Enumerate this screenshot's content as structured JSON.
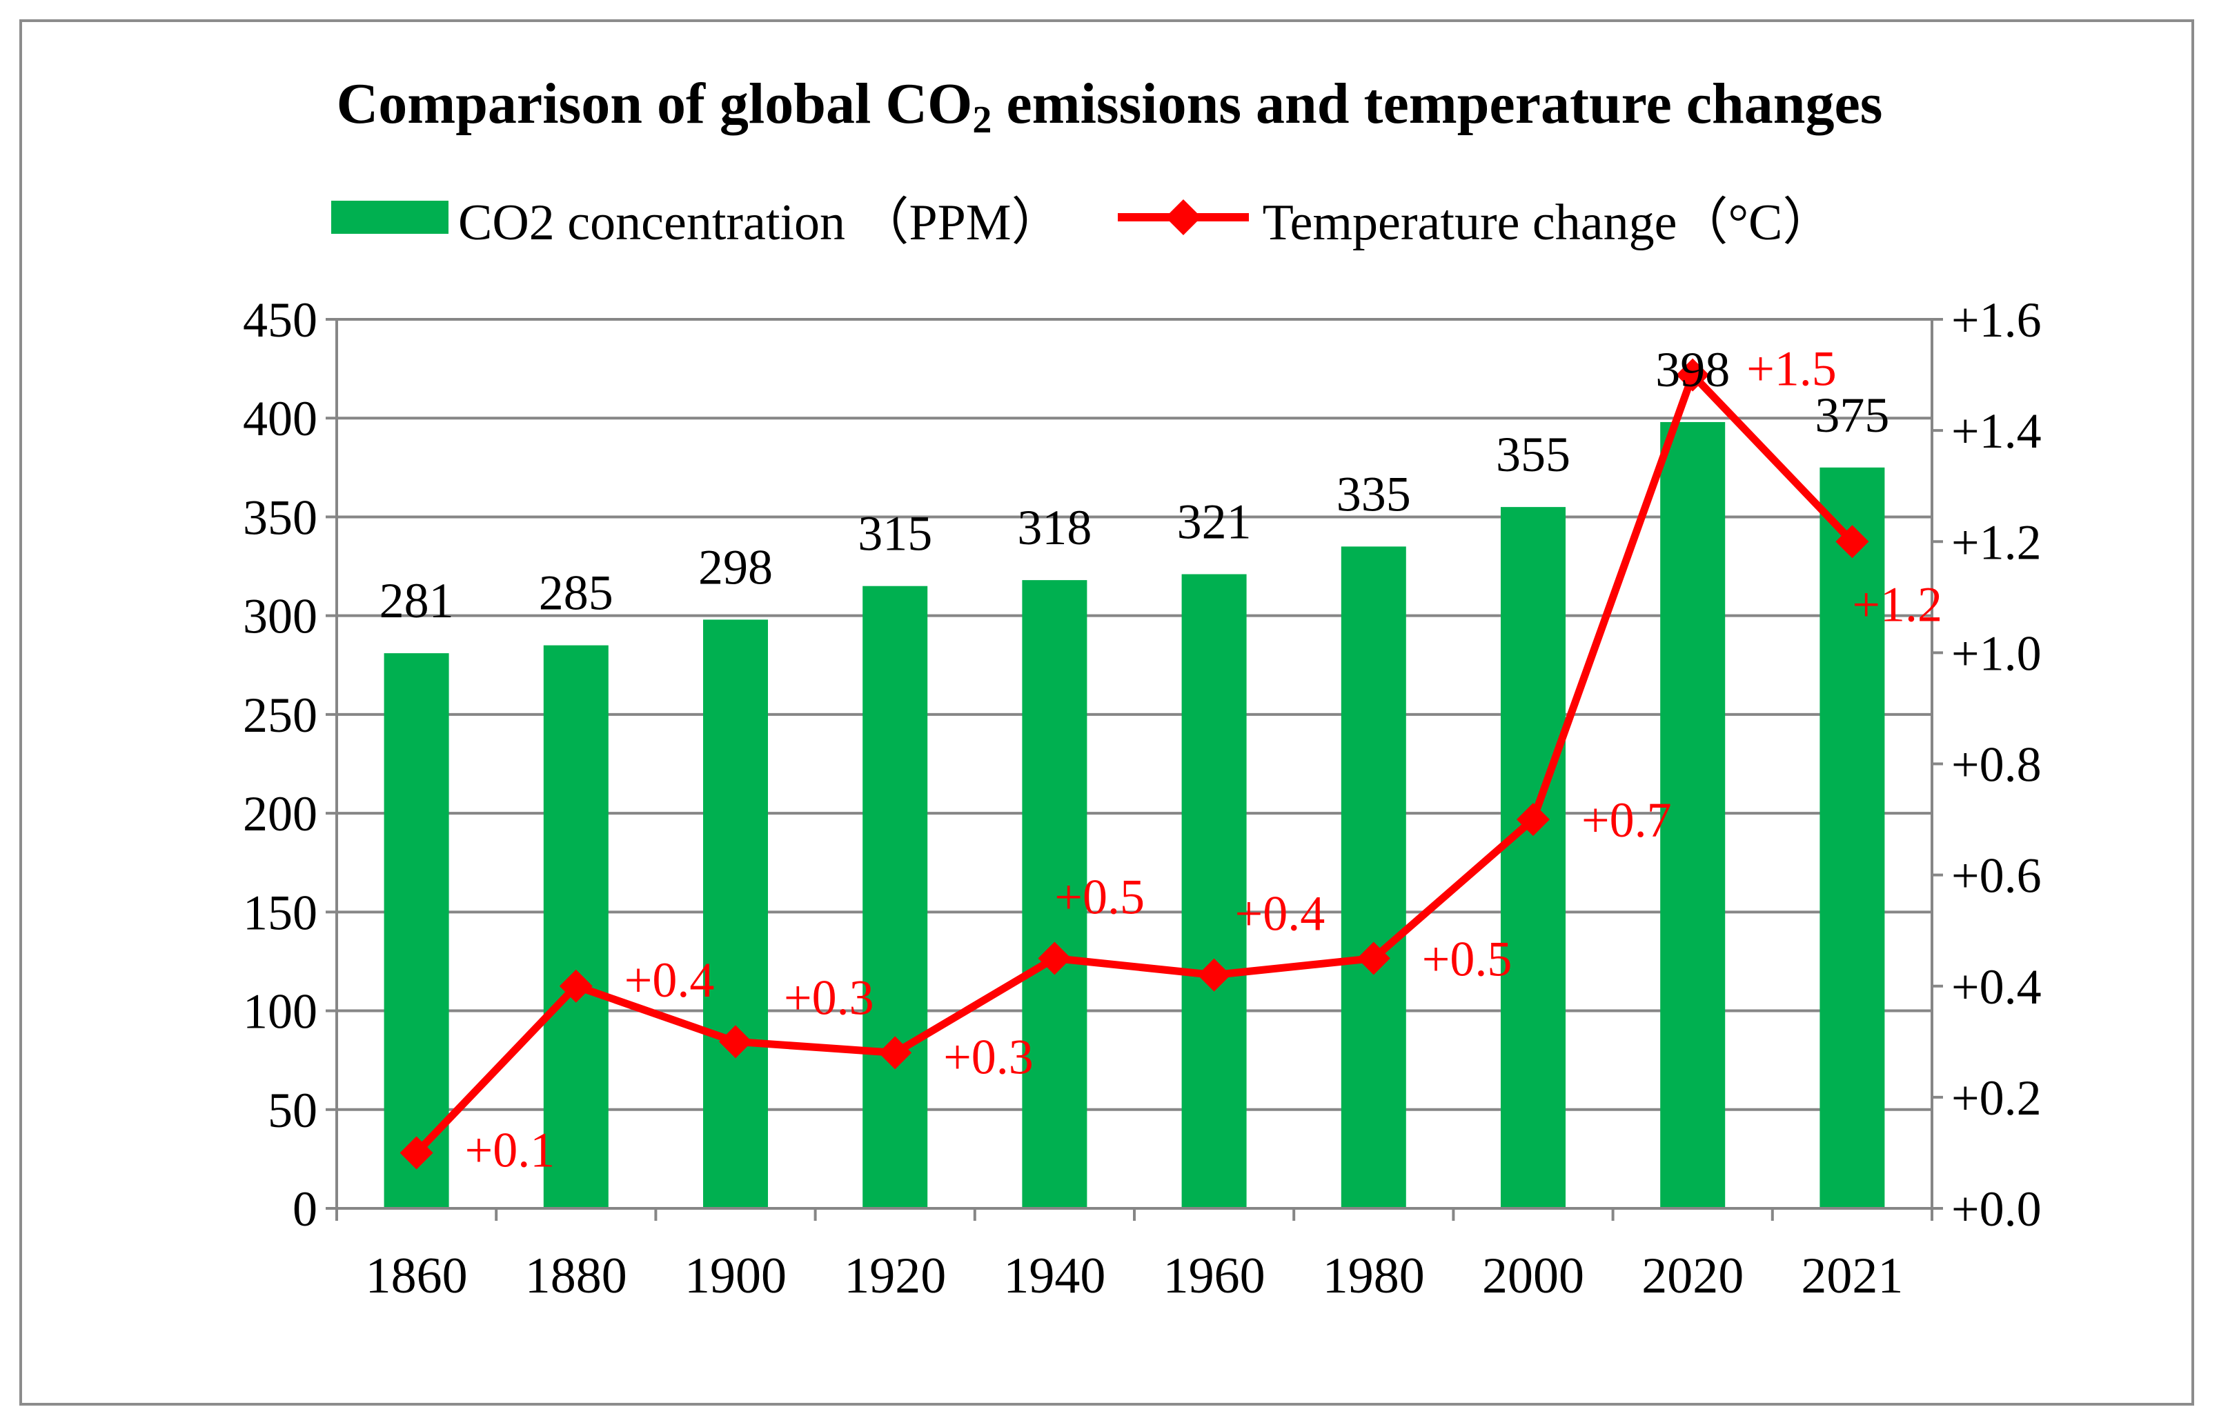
{
  "chart_data": {
    "type": "bar",
    "title": "Comparison of global CO",
    "title_subscript": "2",
    "title_suffix": " emissions and temperature changes",
    "categories": [
      "1860",
      "1880",
      "1900",
      "1920",
      "1940",
      "1960",
      "1980",
      "2000",
      "2020",
      "2021"
    ],
    "series": [
      {
        "name": "CO2 concentration （PPM）",
        "type": "bar",
        "axis": "left",
        "color": "#00b050",
        "values": [
          281,
          285,
          298,
          315,
          318,
          321,
          335,
          355,
          398,
          375
        ],
        "labels": [
          "281",
          "285",
          "298",
          "315",
          "318",
          "321",
          "335",
          "355",
          "398",
          "375"
        ]
      },
      {
        "name": "Temperature change（°C）",
        "type": "line",
        "axis": "right",
        "color": "#ff0000",
        "marker": "diamond",
        "values": [
          0.1,
          0.4,
          0.3,
          0.28,
          0.45,
          0.42,
          0.45,
          0.7,
          1.5,
          1.2
        ],
        "labels": [
          "+0.1",
          "+0.4",
          "+0.3",
          "+0.3",
          "+0.5",
          "+0.4",
          "+0.5",
          "+0.7",
          "+1.5",
          "+1.2"
        ]
      }
    ],
    "y_left": {
      "ylim": [
        0,
        450
      ],
      "ticks": [
        0,
        50,
        100,
        150,
        200,
        250,
        300,
        350,
        400,
        450
      ],
      "tick_labels": [
        "0",
        "50",
        "100",
        "150",
        "200",
        "250",
        "300",
        "350",
        "400",
        "450"
      ]
    },
    "y_right": {
      "ylim": [
        0,
        1.6
      ],
      "ticks": [
        0,
        0.2,
        0.4,
        0.6,
        0.8,
        1.0,
        1.2,
        1.4,
        1.6
      ],
      "tick_labels": [
        "+0.0",
        "+0.2",
        "+0.4",
        "+0.6",
        "+0.8",
        "+1.0",
        "+1.2",
        "+1.4",
        "+1.6"
      ]
    },
    "xlabel": "",
    "ylabel": "",
    "grid": true,
    "legend_position": "top"
  }
}
